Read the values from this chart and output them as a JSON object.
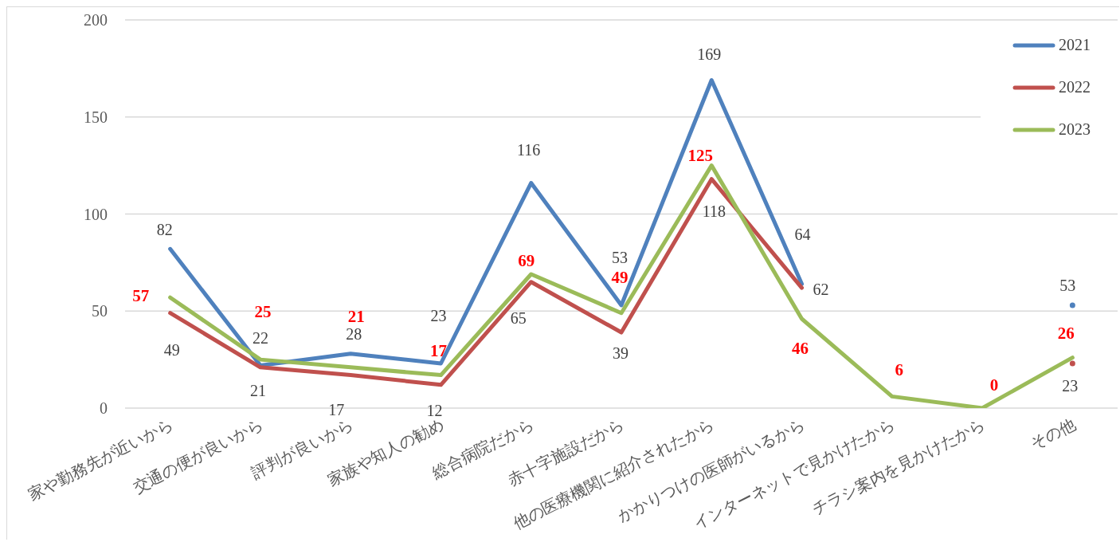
{
  "chart_data": {
    "type": "line",
    "categories": [
      "家や勤務先が近いから",
      "交通の便が良いから",
      "評判が良いから",
      "家族や知人の勧め",
      "総合病院だから",
      "赤十字施設だから",
      "他の医療機関に紹介されたから",
      "かかりつけの医師がいるから",
      "インターネットで見かけたから",
      "チラシ案内を見かけたから",
      "その他"
    ],
    "series": [
      {
        "name": "2021",
        "color": "#4f81bd",
        "values": [
          82,
          22,
          28,
          23,
          116,
          53,
          169,
          64,
          null,
          null,
          53
        ]
      },
      {
        "name": "2022",
        "color": "#c0504d",
        "values": [
          49,
          21,
          17,
          12,
          65,
          39,
          118,
          62,
          null,
          null,
          23
        ]
      },
      {
        "name": "2023",
        "color": "#9bbb59",
        "values": [
          57,
          25,
          21,
          17,
          69,
          49,
          125,
          46,
          6,
          0,
          26
        ]
      }
    ],
    "ylim": [
      0,
      200
    ],
    "yticks": [
      0,
      50,
      100,
      150,
      200
    ],
    "grid": "y",
    "legend": "top right",
    "data_labels": true,
    "marker": "none",
    "line_style": "solid"
  }
}
